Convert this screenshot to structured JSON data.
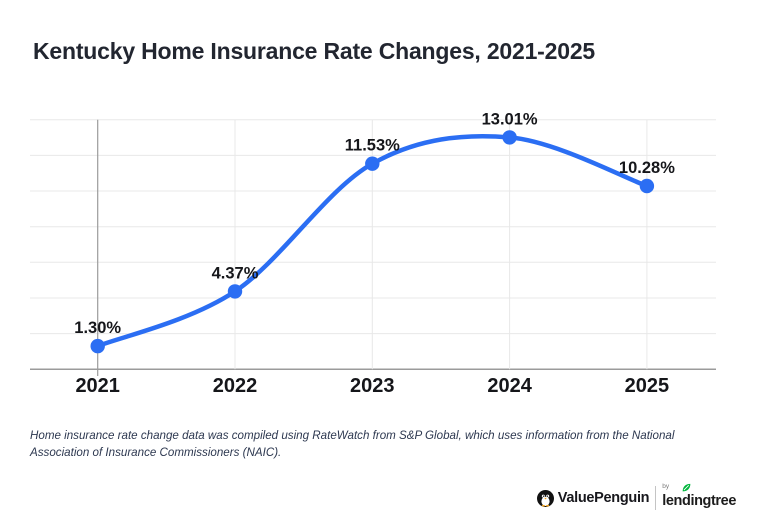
{
  "title": "Kentucky Home Insurance Rate Changes, 2021-2025",
  "footnote": "Home insurance rate change data was compiled using RateWatch from S&P Global, which uses information from the National Association of Insurance Commissioners (NAIC).",
  "branding": {
    "valuepenguin": "ValuePenguin",
    "by": "by",
    "lendingtree": "lendingtree",
    "penguin_icon": "penguin-icon",
    "leaf_icon": "leaf-icon",
    "leaf_green": "#00b63c",
    "penguin_black": "#121212",
    "beak_orange": "#f5a623"
  },
  "colors": {
    "title_text": "#222630",
    "footnote_text": "#2d3850",
    "page_background": "#ffffff"
  },
  "chart_data": {
    "type": "line",
    "title": "Kentucky Home Insurance Rate Changes, 2021-2025",
    "categories": [
      "2021",
      "2022",
      "2023",
      "2024",
      "2025"
    ],
    "values": [
      1.3,
      4.37,
      11.53,
      13.01,
      10.28
    ],
    "point_labels": [
      "1.30%",
      "4.37%",
      "11.53%",
      "13.01%",
      "10.28%"
    ],
    "xlabel": "",
    "ylabel": "",
    "ylim": [
      0,
      14
    ],
    "grid_step": 2,
    "grid_on": true,
    "legend": "none",
    "line_color": "#2b6ef3",
    "grid_color": "#e8e8e8",
    "axis_color": "#9b9b9b",
    "label_color": "#15161a"
  }
}
